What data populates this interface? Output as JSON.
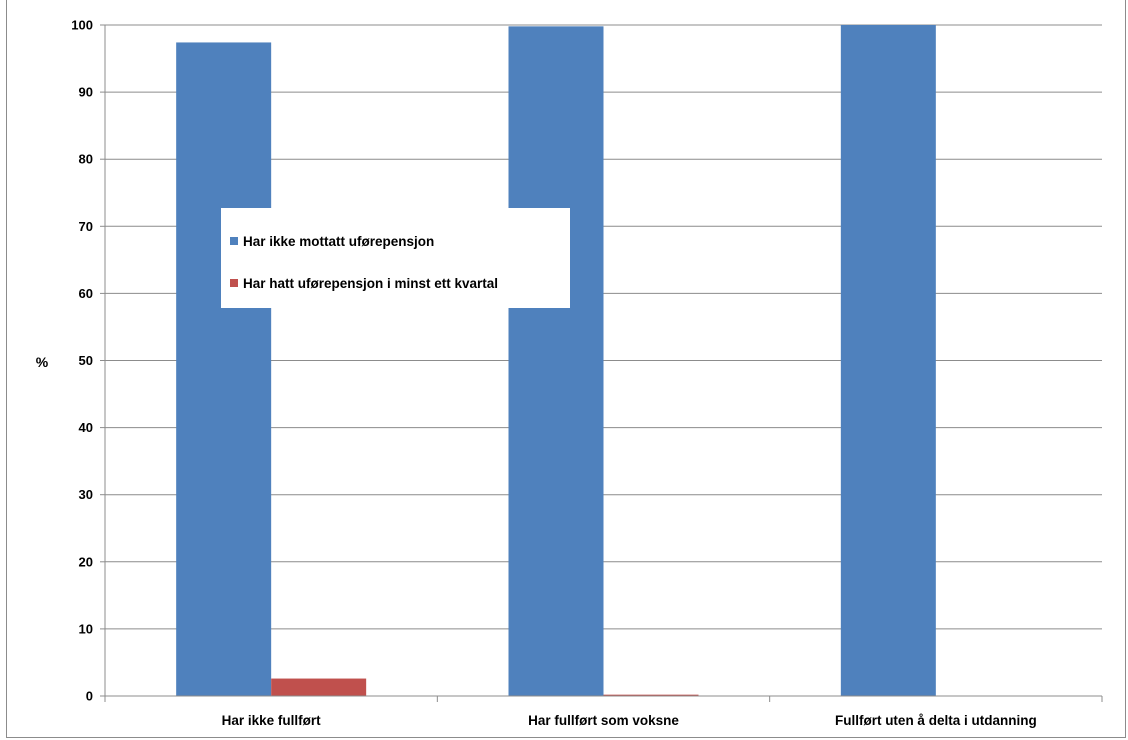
{
  "chart_data": {
    "type": "bar",
    "categories": [
      "Har ikke fullført",
      "Har fullført som voksne",
      "Fullført uten å delta i utdanning"
    ],
    "series": [
      {
        "name": "Har ikke mottatt uførepensjon",
        "color": "#4F81BD",
        "values": [
          97.4,
          99.8,
          100
        ]
      },
      {
        "name": "Har hatt uførepensjon  i minst ett kvartal",
        "color": "#C0504D",
        "values": [
          2.6,
          0.2,
          0
        ]
      }
    ],
    "ylabel": "%",
    "xlabel": "",
    "ylim": [
      0,
      100
    ],
    "yticks": [
      0,
      10,
      20,
      30,
      40,
      50,
      60,
      70,
      80,
      90,
      100
    ],
    "grid": true,
    "legend_position": "upper-left inside plot"
  }
}
